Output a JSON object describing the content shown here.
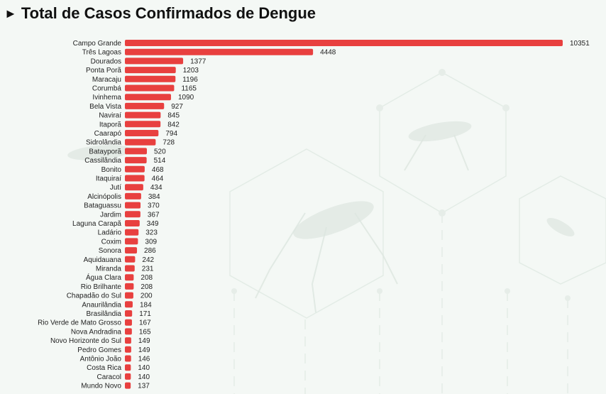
{
  "header": {
    "marker": "►",
    "title": "Total de Casos Confirmados de Dengue"
  },
  "colors": {
    "bar": "#e8403f",
    "background": "#f4f8f5",
    "decoration": "#e3ece6"
  },
  "chart_data": {
    "type": "bar",
    "orientation": "horizontal",
    "title": "Total de Casos Confirmados de Dengue",
    "grid": false,
    "data_labels": true,
    "xlim": [
      0,
      10351
    ],
    "categories": [
      "Campo Grande",
      "Três Lagoas",
      "Dourados",
      "Ponta Porã",
      "Maracaju",
      "Corumbá",
      "Ivinhema",
      "Bela Vista",
      "Naviraí",
      "Itaporã",
      "Caarapó",
      "Sidrolândia",
      "Batayporã",
      "Cassilândia",
      "Bonito",
      "Itaquiraí",
      "Jutí",
      "Alcinópolis",
      "Bataguassu",
      "Jardim",
      "Laguna Carapã",
      "Ladário",
      "Coxim",
      "Sonora",
      "Aquidauana",
      "Miranda",
      "Água Clara",
      "Rio Brilhante",
      "Chapadão do Sul",
      "Anaurilândia",
      "Brasilândia",
      "Rio Verde de Mato Grosso",
      "Nova Andradina",
      "Novo Horizonte do Sul",
      "Pedro Gomes",
      "Antônio João",
      "Costa Rica",
      "Caracol",
      "Mundo Novo"
    ],
    "values": [
      10351,
      4448,
      1377,
      1203,
      1196,
      1165,
      1090,
      927,
      845,
      842,
      794,
      728,
      520,
      514,
      468,
      464,
      434,
      384,
      370,
      367,
      349,
      323,
      309,
      286,
      242,
      231,
      208,
      208,
      200,
      184,
      171,
      167,
      165,
      149,
      149,
      146,
      140,
      140,
      137
    ]
  }
}
